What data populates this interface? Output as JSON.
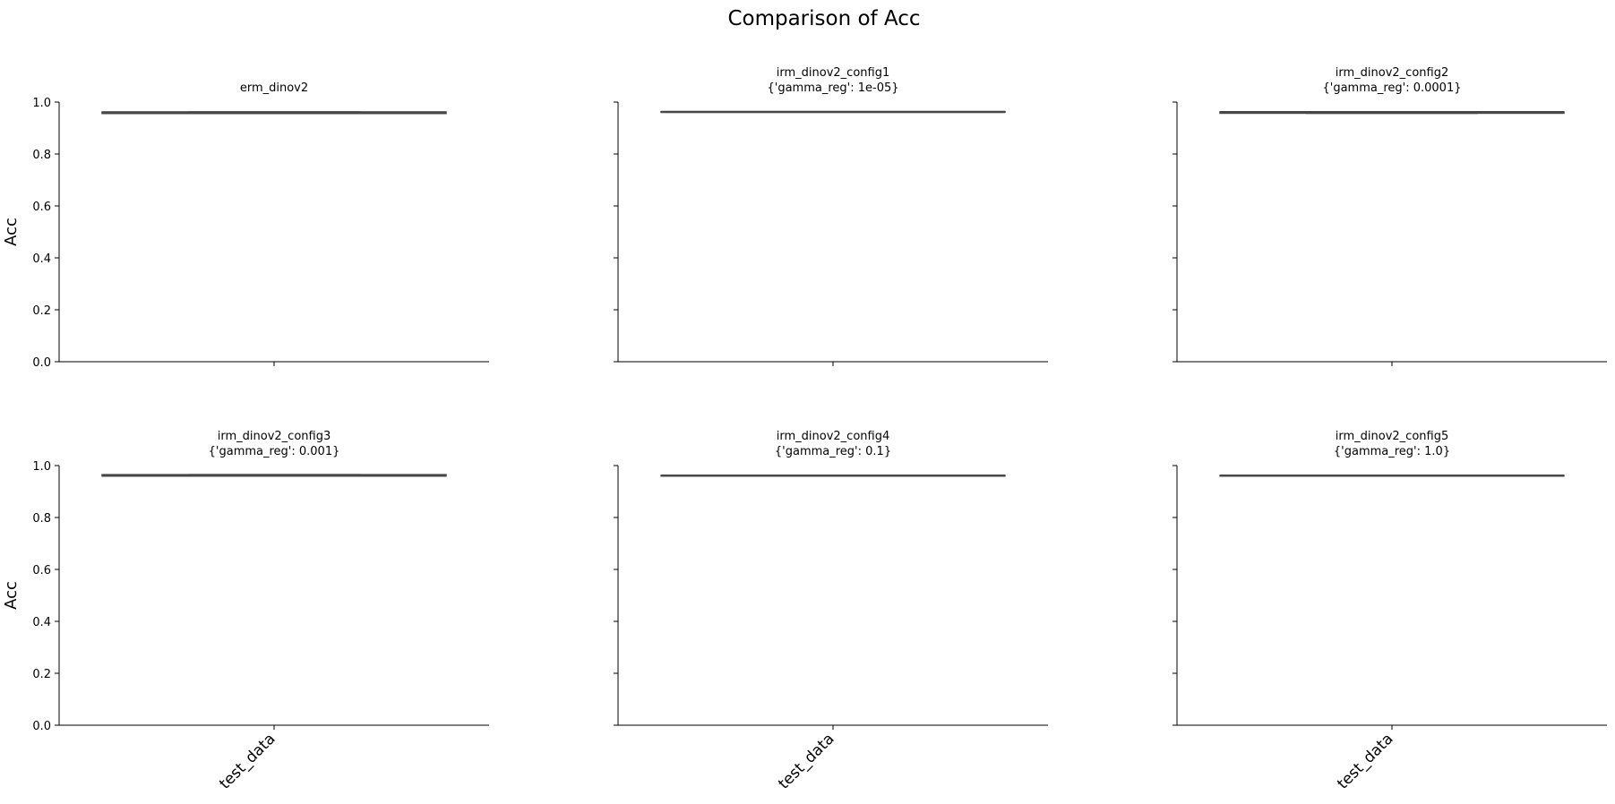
{
  "figure": {
    "suptitle": "Comparison of Acc"
  },
  "chart_data": [
    {
      "type": "box",
      "title": "erm_dinov2",
      "subtitle": "",
      "categories": [
        "test_data"
      ],
      "show_xticklabels": false,
      "ylabel": "Acc",
      "show_yticklabels": true,
      "ylim": [
        0,
        1.0
      ],
      "yticks": [
        "0.0",
        "0.2",
        "0.4",
        "0.6",
        "0.8",
        "1.0"
      ],
      "grid": false,
      "boxes": [
        {
          "category": "test_data",
          "q1": 0.956,
          "median": 0.96,
          "q3": 0.962,
          "whisker_low": 0.956,
          "whisker_high": 0.962
        }
      ]
    },
    {
      "type": "box",
      "title": "irm_dinov2_config1",
      "subtitle": "{'gamma_reg': 1e-05}",
      "categories": [
        "test_data"
      ],
      "show_xticklabels": false,
      "ylabel": "",
      "show_yticklabels": false,
      "ylim": [
        0,
        1.0
      ],
      "yticks": [
        "0.0",
        "0.2",
        "0.4",
        "0.6",
        "0.8",
        "1.0"
      ],
      "grid": false,
      "boxes": [
        {
          "category": "test_data",
          "q1": 0.961,
          "median": 0.962,
          "q3": 0.963,
          "whisker_low": 0.961,
          "whisker_high": 0.963
        }
      ]
    },
    {
      "type": "box",
      "title": "irm_dinov2_config2",
      "subtitle": "{'gamma_reg': 0.0001}",
      "categories": [
        "test_data"
      ],
      "show_xticklabels": false,
      "ylabel": "",
      "show_yticklabels": false,
      "ylim": [
        0,
        1.0
      ],
      "yticks": [
        "0.0",
        "0.2",
        "0.4",
        "0.6",
        "0.8",
        "1.0"
      ],
      "grid": false,
      "boxes": [
        {
          "category": "test_data",
          "q1": 0.957,
          "median": 0.961,
          "q3": 0.962,
          "whisker_low": 0.957,
          "whisker_high": 0.962
        }
      ]
    },
    {
      "type": "box",
      "title": "irm_dinov2_config3",
      "subtitle": "{'gamma_reg': 0.001}",
      "categories": [
        "test_data"
      ],
      "show_xticklabels": true,
      "ylabel": "Acc",
      "show_yticklabels": true,
      "ylim": [
        0,
        1.0
      ],
      "yticks": [
        "0.0",
        "0.2",
        "0.4",
        "0.6",
        "0.8",
        "1.0"
      ],
      "grid": false,
      "boxes": [
        {
          "category": "test_data",
          "q1": 0.96,
          "median": 0.961,
          "q3": 0.965,
          "whisker_low": 0.96,
          "whisker_high": 0.965
        }
      ]
    },
    {
      "type": "box",
      "title": "irm_dinov2_config4",
      "subtitle": "{'gamma_reg': 0.1}",
      "categories": [
        "test_data"
      ],
      "show_xticklabels": true,
      "ylabel": "",
      "show_yticklabels": false,
      "ylim": [
        0,
        1.0
      ],
      "yticks": [
        "0.0",
        "0.2",
        "0.4",
        "0.6",
        "0.8",
        "1.0"
      ],
      "grid": false,
      "boxes": [
        {
          "category": "test_data",
          "q1": 0.96,
          "median": 0.961,
          "q3": 0.962,
          "whisker_low": 0.96,
          "whisker_high": 0.962
        }
      ]
    },
    {
      "type": "box",
      "title": "irm_dinov2_config5",
      "subtitle": "{'gamma_reg': 1.0}",
      "categories": [
        "test_data"
      ],
      "show_xticklabels": true,
      "ylabel": "",
      "show_yticklabels": false,
      "ylim": [
        0,
        1.0
      ],
      "yticks": [
        "0.0",
        "0.2",
        "0.4",
        "0.6",
        "0.8",
        "1.0"
      ],
      "grid": false,
      "boxes": [
        {
          "category": "test_data",
          "q1": 0.96,
          "median": 0.961,
          "q3": 0.962,
          "whisker_low": 0.96,
          "whisker_high": 0.962
        }
      ]
    }
  ]
}
